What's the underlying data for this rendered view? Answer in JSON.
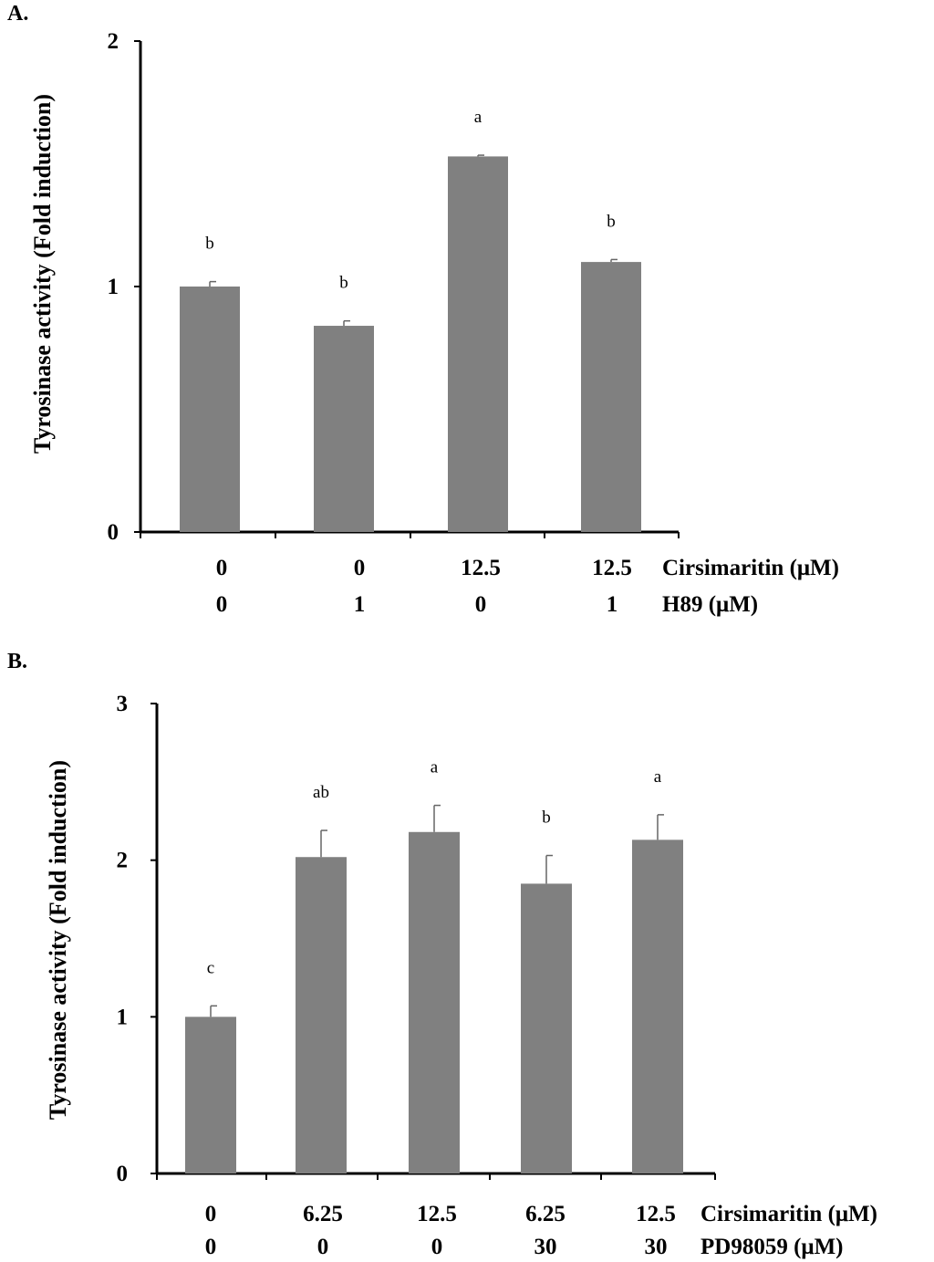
{
  "chart_data": [
    {
      "type": "bar",
      "panel_label": "A.",
      "ylabel": "Tyrosinase  activity (Fold induction)",
      "ylim": [
        0,
        2
      ],
      "yticks": [
        "0",
        "1",
        "2"
      ],
      "bar_color": "#808080",
      "values": [
        1.0,
        0.84,
        1.53,
        1.1
      ],
      "errors": [
        0.02,
        0.02,
        0.005,
        0.01
      ],
      "significance": [
        "b",
        "b",
        "a",
        "b"
      ],
      "conditions": [
        {
          "label": "Cirsimaritin   (μM)",
          "values": [
            "0",
            "0",
            "12.5",
            "12.5"
          ]
        },
        {
          "label": "H89 (μM)",
          "values": [
            "0",
            "1",
            "0",
            "1"
          ]
        }
      ]
    },
    {
      "type": "bar",
      "panel_label": "B.",
      "ylabel": "Tyrosinase  activity (Fold induction)",
      "ylim": [
        0,
        3
      ],
      "yticks": [
        "0",
        "1",
        "2",
        "3"
      ],
      "bar_color": "#808080",
      "values": [
        1.0,
        2.02,
        2.18,
        1.85,
        2.13
      ],
      "errors": [
        0.07,
        0.17,
        0.17,
        0.18,
        0.16
      ],
      "significance": [
        "c",
        "ab",
        "a",
        "b",
        "a"
      ],
      "conditions": [
        {
          "label": "Cirsimaritin   (μM)",
          "values": [
            "0",
            "6.25",
            "12.5",
            "6.25",
            "12.5"
          ]
        },
        {
          "label": "PD98059     (μM)",
          "values": [
            "0",
            "0",
            "0",
            "30",
            "30"
          ]
        }
      ]
    }
  ]
}
